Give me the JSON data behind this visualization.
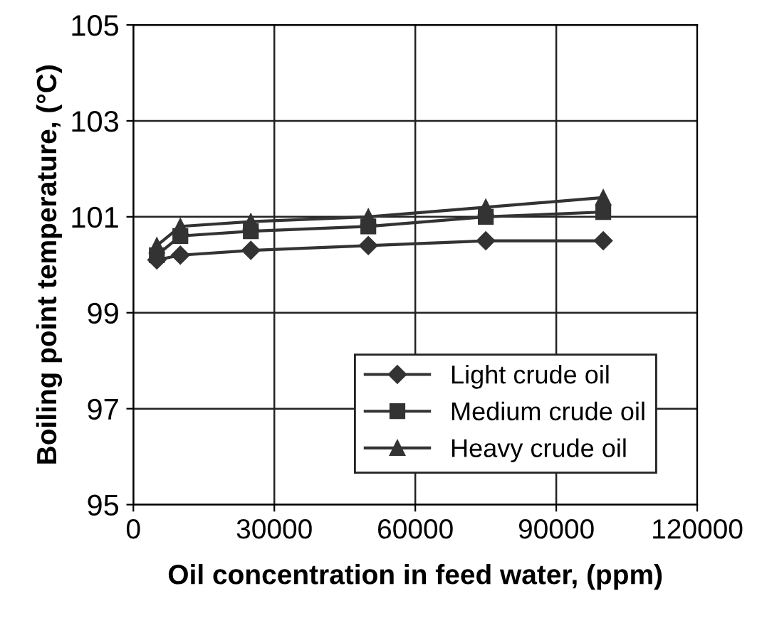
{
  "chart_data": {
    "type": "line",
    "xlabel": "Oil concentration in feed water, (ppm)",
    "ylabel": "Boiling point temperature, (°C)",
    "x": [
      5000,
      10000,
      25000,
      50000,
      75000,
      100000
    ],
    "series": [
      {
        "name": "Light crude oil",
        "color": "#333333",
        "marker": "diamond",
        "values": [
          100.1,
          100.2,
          100.3,
          100.4,
          100.5,
          100.5
        ]
      },
      {
        "name": "Medium crude oil",
        "color": "#333333",
        "marker": "square",
        "values": [
          100.2,
          100.6,
          100.7,
          100.8,
          101.0,
          101.1
        ]
      },
      {
        "name": "Heavy crude oil",
        "color": "#333333",
        "marker": "triangle",
        "values": [
          100.4,
          100.8,
          100.9,
          101.0,
          101.2,
          101.4
        ]
      }
    ],
    "xlim": [
      0,
      120000
    ],
    "xticks": [
      0,
      30000,
      60000,
      90000,
      120000
    ],
    "ylim": [
      95,
      105
    ],
    "yticks": [
      95,
      97,
      99,
      101,
      103,
      105
    ],
    "grid": true,
    "legend": "bottom right",
    "line_style": "solid"
  }
}
